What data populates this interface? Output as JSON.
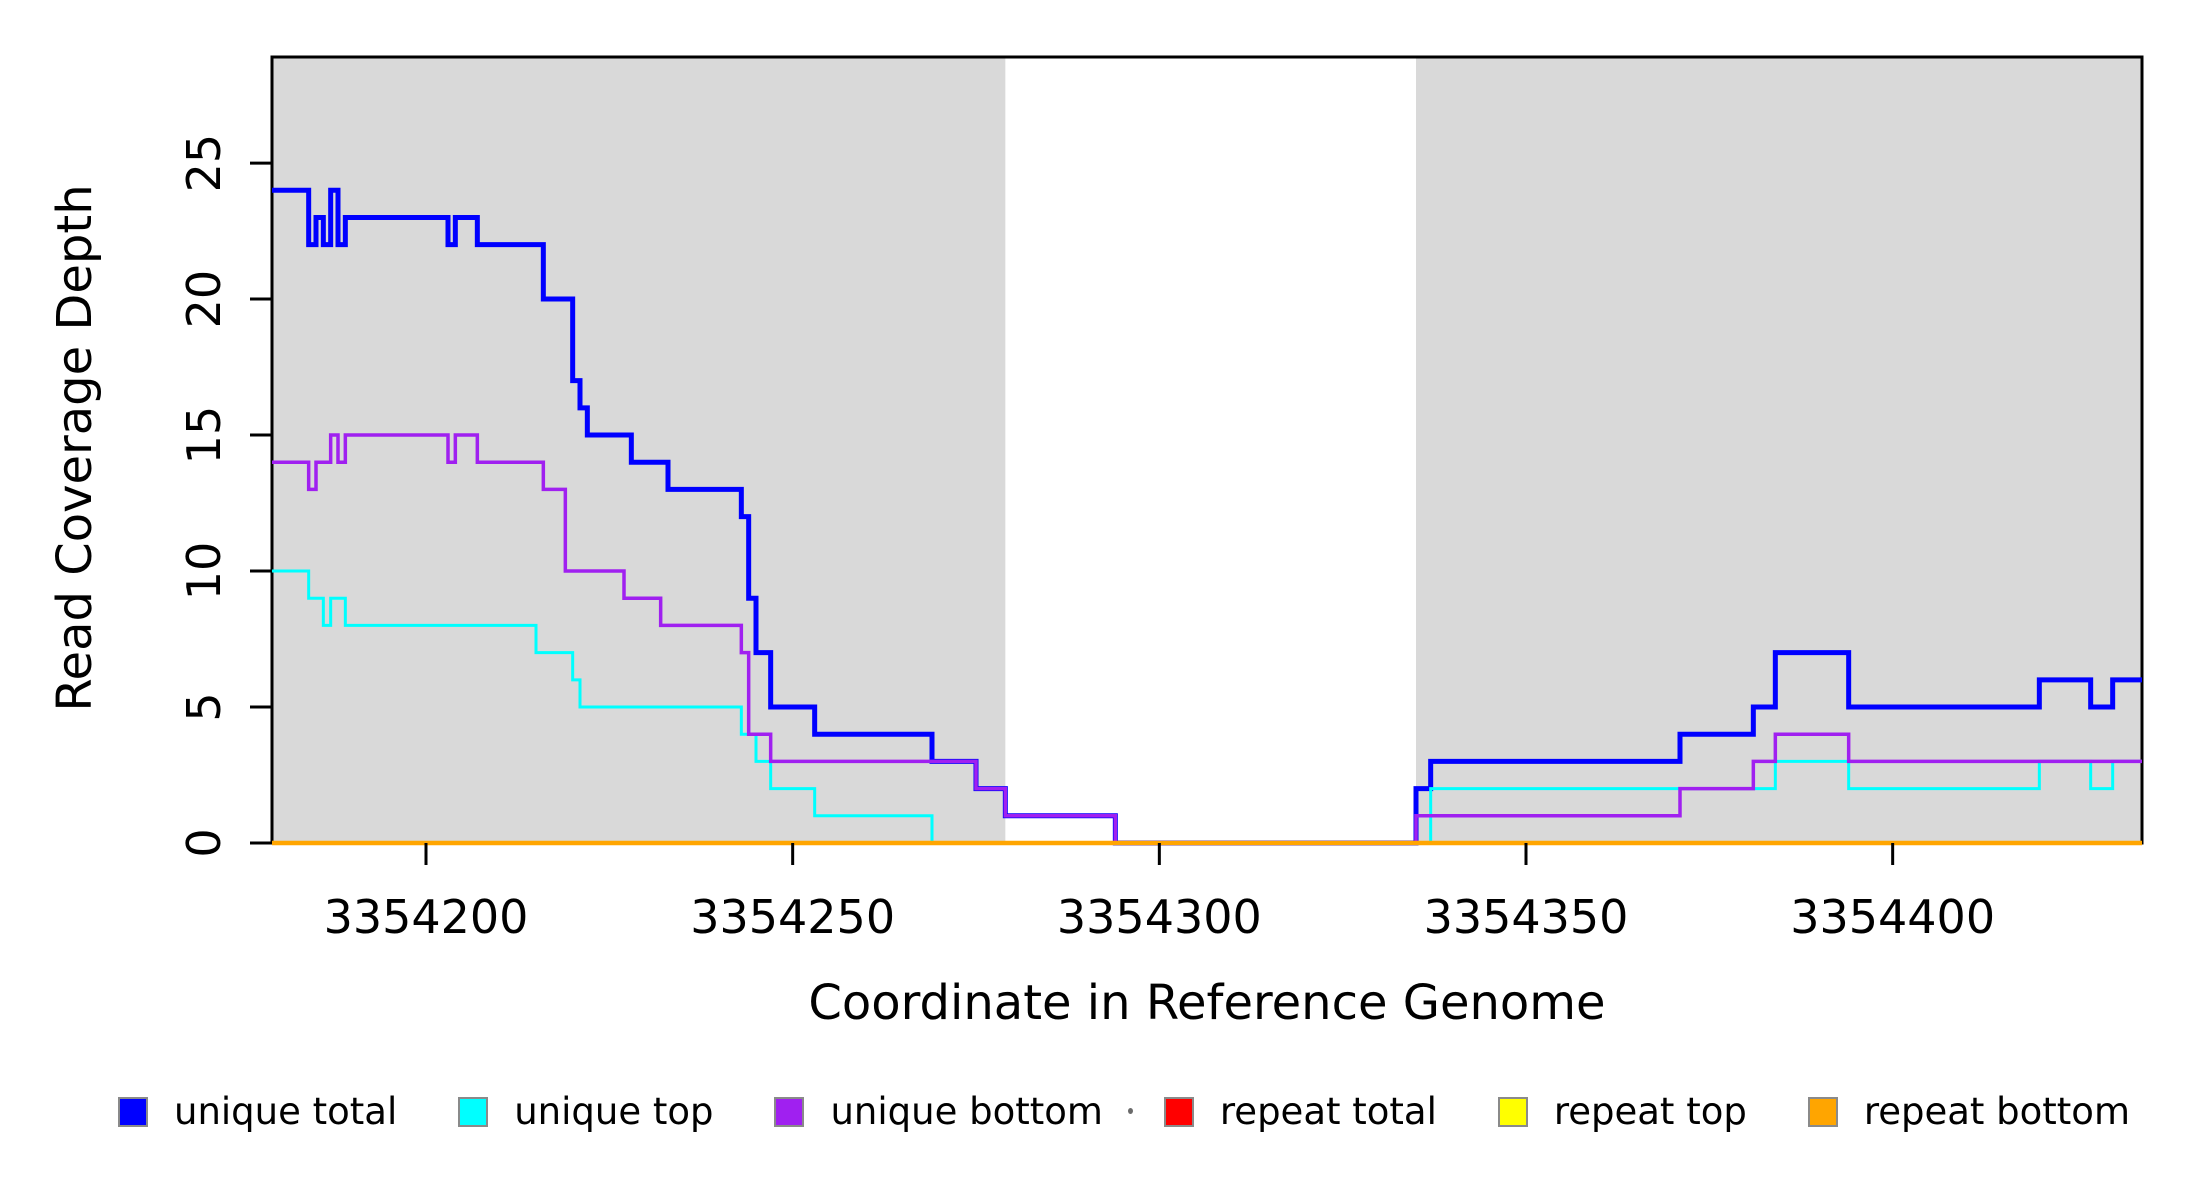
{
  "chart_data": {
    "type": "line",
    "subtype": "step-coverage-plot",
    "title": "",
    "xlabel": "Coordinate in Reference Genome",
    "ylabel": "Read Coverage Depth",
    "xlim": [
      3354179,
      3354434
    ],
    "ylim": [
      0,
      28.9
    ],
    "grid": false,
    "legend_position": "bottom",
    "x_ticks": [
      3354200,
      3354250,
      3354300,
      3354350,
      3354400
    ],
    "y_ticks": [
      0,
      5,
      10,
      15,
      20,
      25
    ],
    "shading": {
      "color": "#d9d9d9",
      "regions": [
        [
          3354179,
          3354279
        ],
        [
          3354335,
          3354434
        ]
      ]
    },
    "series": [
      {
        "name": "unique total",
        "color": "#0000ff",
        "line_width": 5,
        "steps": [
          [
            3354179,
            24
          ],
          [
            3354184,
            22
          ],
          [
            3354185,
            23
          ],
          [
            3354186,
            22
          ],
          [
            3354187,
            24
          ],
          [
            3354188,
            22
          ],
          [
            3354189,
            23
          ],
          [
            3354203,
            22
          ],
          [
            3354204,
            23
          ],
          [
            3354207,
            22
          ],
          [
            3354216,
            20
          ],
          [
            3354220,
            17
          ],
          [
            3354221,
            16
          ],
          [
            3354222,
            15
          ],
          [
            3354228,
            14
          ],
          [
            3354233,
            13
          ],
          [
            3354243,
            12
          ],
          [
            3354244,
            9
          ],
          [
            3354245,
            7
          ],
          [
            3354247,
            5
          ],
          [
            3354253,
            4
          ],
          [
            3354269,
            3
          ],
          [
            3354275,
            2
          ],
          [
            3354279,
            1
          ],
          [
            3354294,
            0
          ],
          [
            3354335,
            2
          ],
          [
            3354337,
            3
          ],
          [
            3354371,
            4
          ],
          [
            3354381,
            5
          ],
          [
            3354384,
            7
          ],
          [
            3354394,
            5
          ],
          [
            3354420,
            6
          ],
          [
            3354427,
            5
          ],
          [
            3354430,
            6
          ]
        ]
      },
      {
        "name": "unique top",
        "color": "#00ffff",
        "line_width": 3,
        "steps": [
          [
            3354179,
            10
          ],
          [
            3354184,
            9
          ],
          [
            3354186,
            8
          ],
          [
            3354187,
            9
          ],
          [
            3354189,
            8
          ],
          [
            3354215,
            7
          ],
          [
            3354220,
            6
          ],
          [
            3354221,
            5
          ],
          [
            3354243,
            4
          ],
          [
            3354245,
            3
          ],
          [
            3354247,
            2
          ],
          [
            3354253,
            1
          ],
          [
            3354269,
            0
          ],
          [
            3354337,
            2
          ],
          [
            3354384,
            3
          ],
          [
            3354394,
            2
          ],
          [
            3354420,
            3
          ],
          [
            3354427,
            2
          ],
          [
            3354430,
            3
          ]
        ]
      },
      {
        "name": "unique bottom",
        "color": "#a020f0",
        "line_width": 3.5,
        "steps": [
          [
            3354179,
            14
          ],
          [
            3354184,
            13
          ],
          [
            3354185,
            14
          ],
          [
            3354187,
            15
          ],
          [
            3354188,
            14
          ],
          [
            3354189,
            15
          ],
          [
            3354203,
            14
          ],
          [
            3354204,
            15
          ],
          [
            3354207,
            14
          ],
          [
            3354216,
            13
          ],
          [
            3354219,
            10
          ],
          [
            3354227,
            9
          ],
          [
            3354232,
            8
          ],
          [
            3354243,
            7
          ],
          [
            3354244,
            4
          ],
          [
            3354247,
            3
          ],
          [
            3354275,
            2
          ],
          [
            3354279,
            1
          ],
          [
            3354294,
            0
          ],
          [
            3354335,
            1
          ],
          [
            3354371,
            2
          ],
          [
            3354381,
            3
          ],
          [
            3354384,
            4
          ],
          [
            3354394,
            3
          ]
        ]
      },
      {
        "name": "repeat total",
        "color": "#ff0000",
        "line_width": 3,
        "steps": [
          [
            3354179,
            0
          ]
        ]
      },
      {
        "name": "repeat top",
        "color": "#ffff00",
        "line_width": 3,
        "steps": [
          [
            3354179,
            0
          ]
        ]
      },
      {
        "name": "repeat bottom",
        "color": "#ffa500",
        "line_width": 4.5,
        "steps": [
          [
            3354179,
            0
          ]
        ]
      }
    ]
  },
  "axis_labels": {
    "x_tick_labels": [
      "3354200",
      "3354250",
      "3354300",
      "3354350",
      "3354400"
    ],
    "y_tick_labels": [
      "0",
      "5",
      "10",
      "15",
      "20",
      "25"
    ]
  },
  "legend": {
    "items": [
      {
        "label": "unique total",
        "color": "#0000ff"
      },
      {
        "label": "unique top",
        "color": "#00ffff"
      },
      {
        "label": "unique bottom",
        "color": "#a020f0"
      },
      {
        "label": "repeat total",
        "color": "#ff0000"
      },
      {
        "label": "repeat top",
        "color": "#ffff00"
      },
      {
        "label": "repeat bottom",
        "color": "#ffa500"
      }
    ]
  }
}
